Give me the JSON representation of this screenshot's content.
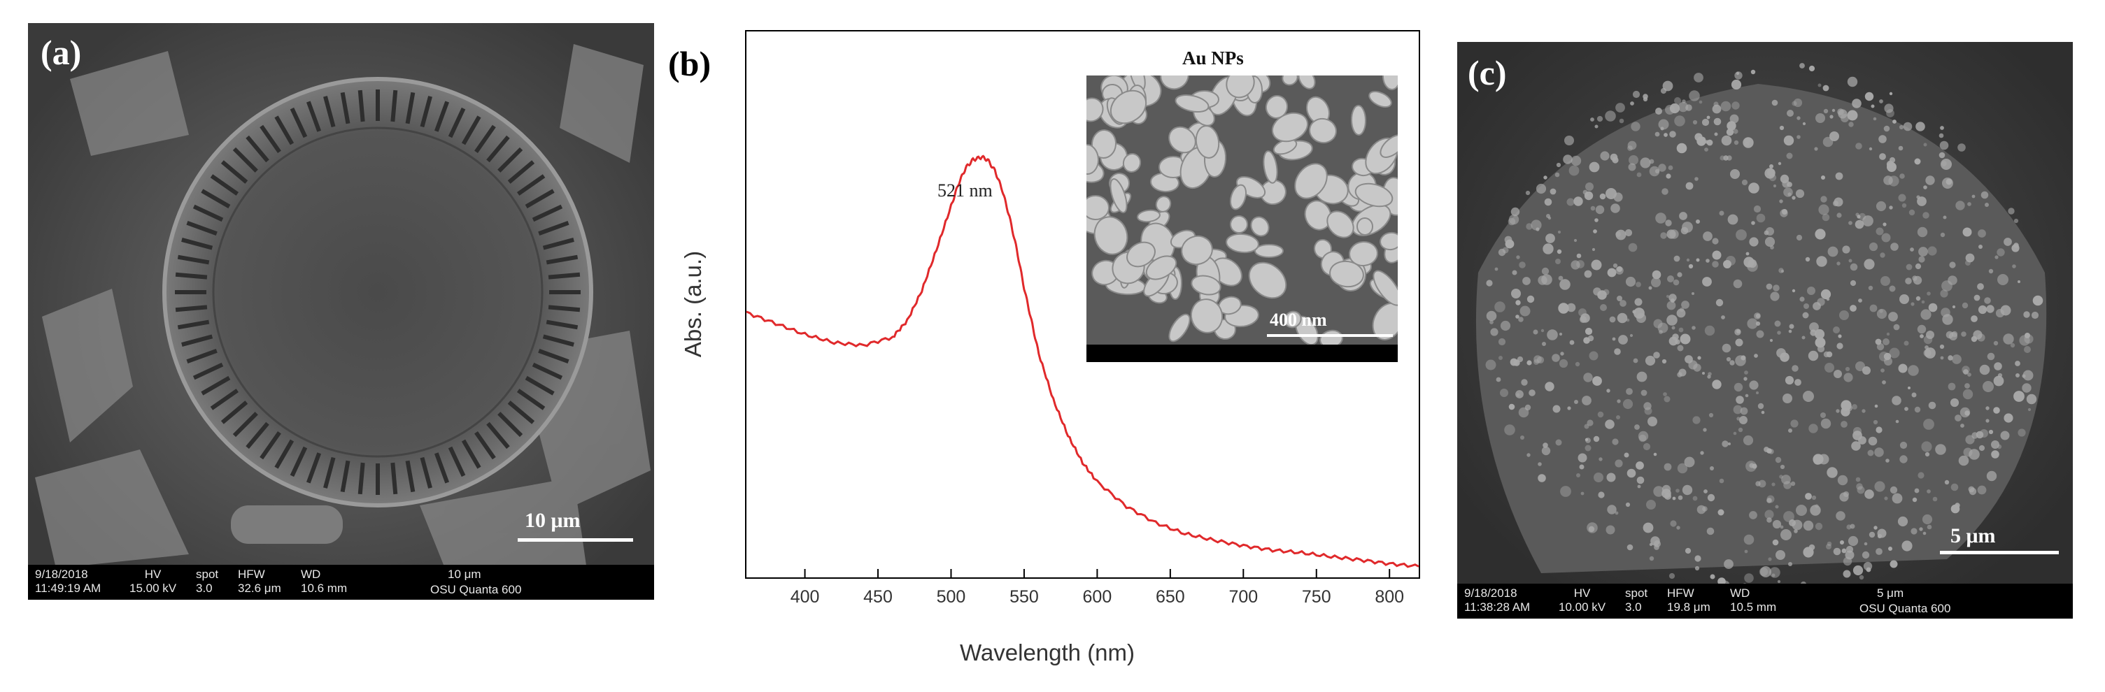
{
  "panels": {
    "a": {
      "label": "(a)",
      "scale_label": "10 μm",
      "databar": {
        "datetime": "9/18/2018\n11:49:19 AM",
        "hv": "HV\n15.00 kV",
        "spot": "spot\n3.0",
        "hfw": "HFW\n32.6 μm",
        "wd": "WD\n10.6 mm",
        "scale": "10 μm",
        "instrument": "OSU Quanta 600"
      }
    },
    "b": {
      "label": "(b)",
      "peak_label": "521 nm",
      "inset_title": "Au NPs",
      "inset_scale_label": "400 nm"
    },
    "c": {
      "label": "(c)",
      "scale_label": "5 μm",
      "databar": {
        "datetime": "9/18/2018\n11:38:28 AM",
        "hv": "HV\n10.00 kV",
        "spot": "spot\n3.0",
        "hfw": "HFW\n19.8 μm",
        "wd": "WD\n10.5 mm",
        "scale": "5 μm",
        "instrument": "OSU Quanta 600"
      }
    }
  },
  "colors": {
    "spectrum_line": "#e0292b",
    "axis": "#000000"
  },
  "chart_data": {
    "type": "line",
    "title": "",
    "xlabel": "Wavelength (nm)",
    "ylabel": "Abs. (a.u.)",
    "xlim": [
      360,
      820
    ],
    "ylim": [
      0,
      1
    ],
    "xticks": [
      400,
      450,
      500,
      550,
      600,
      650,
      700,
      750,
      800
    ],
    "series": [
      {
        "name": "Au NPs",
        "x": [
          360,
          380,
          400,
          420,
          440,
          460,
          470,
          480,
          490,
          500,
          505,
          510,
          515,
          521,
          525,
          530,
          535,
          540,
          545,
          550,
          555,
          560,
          570,
          580,
          590,
          600,
          620,
          640,
          660,
          680,
          700,
          720,
          740,
          760,
          780,
          800,
          820
        ],
        "y": [
          0.485,
          0.465,
          0.445,
          0.43,
          0.425,
          0.44,
          0.47,
          0.525,
          0.6,
          0.68,
          0.72,
          0.75,
          0.765,
          0.77,
          0.765,
          0.745,
          0.71,
          0.66,
          0.6,
          0.53,
          0.47,
          0.41,
          0.325,
          0.26,
          0.21,
          0.175,
          0.13,
          0.1,
          0.08,
          0.068,
          0.058,
          0.05,
          0.045,
          0.038,
          0.032,
          0.025,
          0.02
        ]
      }
    ],
    "annotations": [
      {
        "text": "521 nm",
        "x": 521
      }
    ]
  }
}
